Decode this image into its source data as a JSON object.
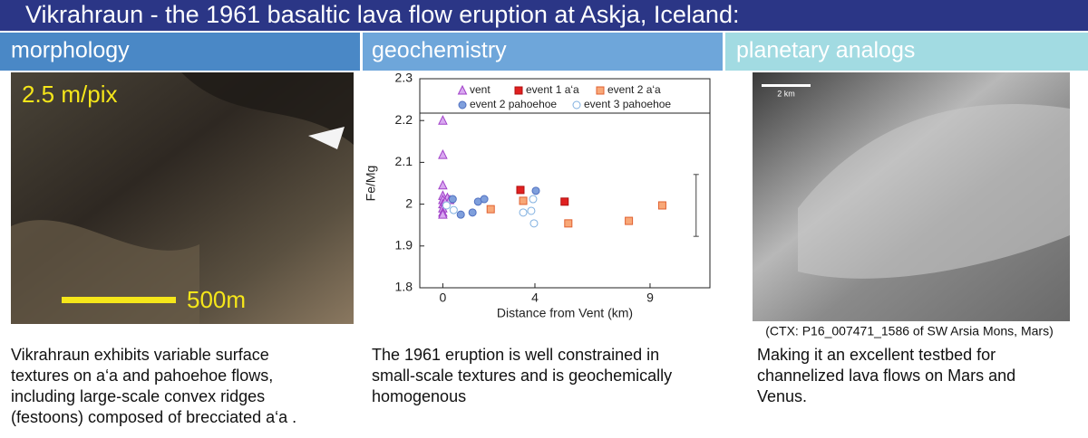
{
  "header": {
    "title": "Vikrahraun - the 1961 basaltic lava flow eruption at Askja, Iceland:"
  },
  "sections": [
    {
      "heading": "morphology",
      "image_labels": [
        "2.5 m/pix",
        "500m"
      ],
      "text": [
        "Vikrahraun exhibits variable surface",
        "textures on a‘a and pahoehoe flows,",
        "including large-scale convex ridges",
        "(festoons) composed of brecciated a‘a ."
      ]
    },
    {
      "heading": "geochemistry",
      "text": [
        "The 1961 eruption is well constrained in",
        "small-scale textures and is geochemically",
        "homogenous"
      ]
    },
    {
      "heading": "planetary analogs",
      "image_labels": [
        "2 km"
      ],
      "caption": "(CTX: P16_007471_1586 of SW Arsia Mons, Mars)",
      "text": [
        "Making it an excellent testbed for",
        "channelized lava flows on Mars and",
        "Venus."
      ]
    }
  ],
  "chart_data": {
    "type": "scatter",
    "x_label": "Distance from Vent (km)",
    "y_label": "Fe/Mg",
    "xlim": [
      -1,
      11.6
    ],
    "xticks": [
      0,
      4,
      9
    ],
    "ylim": [
      1.8,
      2.3
    ],
    "yticks": [
      1.8,
      1.9,
      2.0,
      2.1,
      2.2,
      2.3
    ],
    "series": [
      {
        "name": "vent",
        "marker": "triangle",
        "color": "#d9a8f0",
        "edge": "#a040c8",
        "x": [
          0,
          0,
          0,
          0,
          0,
          0,
          0,
          0,
          0,
          0.2,
          0.3,
          0.1
        ],
        "values": [
          2.2,
          2.118,
          2.045,
          2.02,
          2.01,
          2.0,
          1.99,
          1.98,
          1.975,
          2.015,
          2.01,
          2.005
        ]
      },
      {
        "name": "event 1 a‘a",
        "marker": "square",
        "color": "#e02020",
        "edge": "#b01010",
        "x": [
          3.37,
          5.29
        ],
        "values": [
          2.034,
          2.006
        ]
      },
      {
        "name": "event 2 a‘a",
        "marker": "square",
        "color": "#f8a878",
        "edge": "#e06030",
        "x": [
          2.08,
          3.49,
          5.45,
          8.08,
          9.53
        ],
        "values": [
          1.988,
          2.008,
          1.954,
          1.96,
          1.997
        ]
      },
      {
        "name": "event 2 pahoehoe",
        "marker": "circle",
        "color": "#7f9fdc",
        "edge": "#5070c0",
        "x": [
          0.43,
          0.78,
          1.29,
          1.53,
          1.8,
          4.04
        ],
        "values": [
          2.012,
          1.975,
          1.98,
          2.006,
          2.012,
          2.032
        ]
      },
      {
        "name": "event 3 pahoehoe",
        "marker": "circle",
        "color": "#ffffff",
        "edge": "#80b0e0",
        "x": [
          0.16,
          0.47,
          3.49,
          3.84,
          3.92,
          3.96
        ],
        "values": [
          1.997,
          1.986,
          1.98,
          1.984,
          2.012,
          1.954
        ]
      }
    ],
    "error_bar": {
      "x": 11,
      "value": 1.997,
      "error": 0.074
    }
  }
}
